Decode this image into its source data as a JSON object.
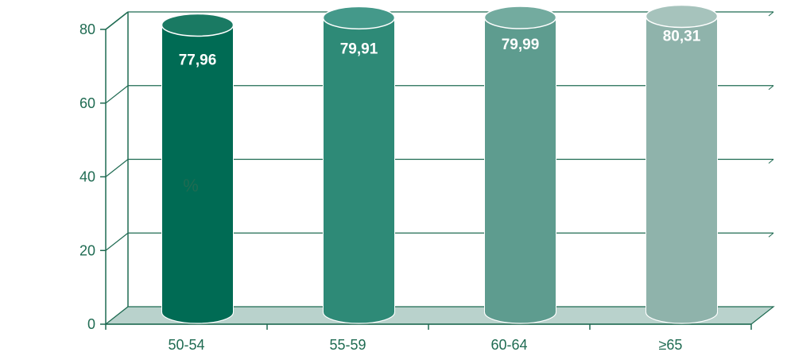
{
  "chart_data": {
    "type": "bar",
    "title": "",
    "xlabel": "",
    "ylabel": "%",
    "categories": [
      "50-54",
      "55-59",
      "60-64",
      "≥65"
    ],
    "values": [
      77.96,
      79.91,
      79.99,
      80.31
    ],
    "value_labels": [
      "77,96",
      "79,91",
      "79,99",
      "80,31"
    ],
    "ylim": [
      0,
      80
    ],
    "yticks": [
      "0",
      "20",
      "40",
      "60",
      "80"
    ],
    "grid": true,
    "style": "3d-cylinder",
    "colors": {
      "bars": [
        "#006b54",
        "#2e8a77",
        "#5e9c8f",
        "#8fb3ab"
      ],
      "bar_top": [
        "#1a7a63",
        "#44998a",
        "#73ab9f",
        "#a6c3bc"
      ],
      "axis": "#1f6b52",
      "floor": "#b9d2cc",
      "text": "#1f6b52"
    }
  }
}
